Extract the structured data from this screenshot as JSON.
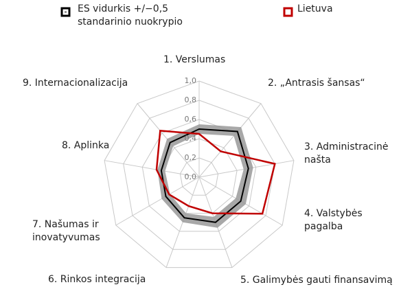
{
  "chart_data": {
    "type": "radar",
    "categories": [
      "1. Verslumas",
      "2. „Antrasis šansas“",
      "3. Administracinė našta",
      "4. Valstybės pagalba",
      "5. Galimybės gauti finansavimą",
      "6. Rinkos integracija",
      "7. Našumas ir inovatyvumas",
      "8. Aplinka",
      "9. Internacionalizacija"
    ],
    "series": [
      {
        "name": "ES vidurkis +/−0,5 standarinio nuokrypio",
        "color": "#000000",
        "band_color": "#999999",
        "values": [
          0.5,
          0.62,
          0.52,
          0.5,
          0.5,
          0.45,
          0.4,
          0.4,
          0.47
        ],
        "low": [
          0.45,
          0.56,
          0.47,
          0.44,
          0.44,
          0.4,
          0.35,
          0.36,
          0.42
        ],
        "high": [
          0.55,
          0.68,
          0.57,
          0.56,
          0.56,
          0.5,
          0.45,
          0.44,
          0.52
        ]
      },
      {
        "name": "Lietuva",
        "color": "#c00000",
        "values": [
          0.45,
          0.35,
          0.8,
          0.76,
          0.4,
          0.32,
          0.36,
          0.45,
          0.63
        ]
      }
    ],
    "rlim": [
      0,
      1
    ],
    "rticks": [
      {
        "value": 0,
        "label": "0,0"
      },
      {
        "value": 0.2,
        "label": "0,2"
      },
      {
        "value": 0.4,
        "label": "0,4"
      },
      {
        "value": 0.6,
        "label": "0,6"
      },
      {
        "value": 0.8,
        "label": "0,8"
      },
      {
        "value": 1,
        "label": "1,0"
      }
    ],
    "grid": true
  }
}
